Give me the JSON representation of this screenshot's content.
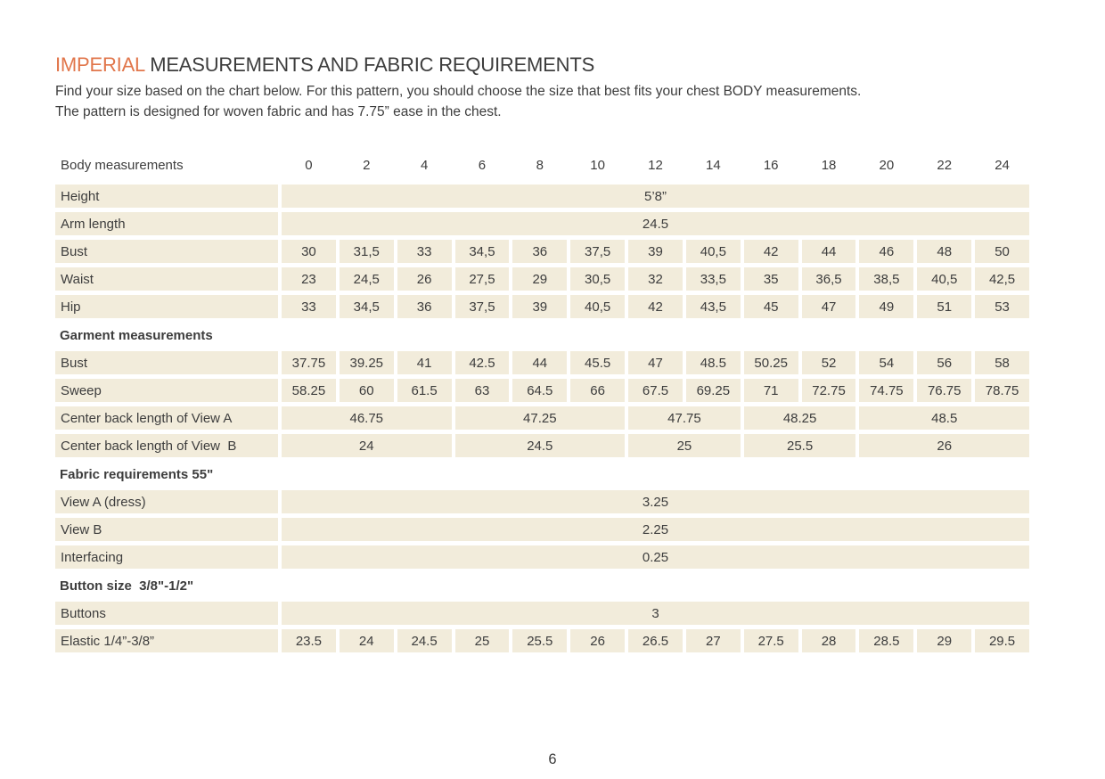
{
  "page": {
    "title": {
      "highlight": "IMPERIAL",
      "rest": " MEASUREMENTS AND FABRIC REQUIREMENTS"
    },
    "intro_line1": "Find your size based on the chart below. For this pattern, you should choose the size that best fits your chest BODY measurements.",
    "intro_line2": "The pattern is designed for woven fabric and has 7.75” ease in the chest.",
    "page_number": "6"
  },
  "colors": {
    "accent": "#e1764b",
    "cell_background": "#f2ecdb",
    "text": "#3d3d3d"
  },
  "chart_data": {
    "type": "table",
    "title": "Imperial measurements and fabric requirements",
    "sizes": [
      "0",
      "2",
      "4",
      "6",
      "8",
      "10",
      "12",
      "14",
      "16",
      "18",
      "20",
      "22",
      "24"
    ],
    "height": "5’8”",
    "arm_length": "24.5",
    "body_bust": [
      "30",
      "31,5",
      "33",
      "34,5",
      "36",
      "37,5",
      "39",
      "40,5",
      "42",
      "44",
      "46",
      "48",
      "50"
    ],
    "body_waist": [
      "23",
      "24,5",
      "26",
      "27,5",
      "29",
      "30,5",
      "32",
      "33,5",
      "35",
      "36,5",
      "38,5",
      "40,5",
      "42,5"
    ],
    "body_hip": [
      "33",
      "34,5",
      "36",
      "37,5",
      "39",
      "40,5",
      "42",
      "43,5",
      "45",
      "47",
      "49",
      "51",
      "53"
    ],
    "garment_bust": [
      "37.75",
      "39.25",
      "41",
      "42.5",
      "44",
      "45.5",
      "47",
      "48.5",
      "50.25",
      "52",
      "54",
      "56",
      "58"
    ],
    "garment_sweep": [
      "58.25",
      "60",
      "61.5",
      "63",
      "64.5",
      "66",
      "67.5",
      "69.25",
      "71",
      "72.75",
      "74.75",
      "76.75",
      "78.75"
    ],
    "center_back_length_view_a": [
      "46.75",
      "47.25",
      "47.75",
      "48.25",
      "48.5"
    ],
    "center_back_length_view_b": [
      "24",
      "24.5",
      "25",
      "25.5",
      "26"
    ],
    "fabric_view_a_dress": "3.25",
    "fabric_view_b": "2.25",
    "fabric_interfacing": "0.25",
    "buttons": "3",
    "elastic": [
      "23.5",
      "24",
      "24.5",
      "25",
      "25.5",
      "26",
      "26.5",
      "27",
      "27.5",
      "28",
      "28.5",
      "29",
      "29.5"
    ]
  },
  "table": {
    "header": {
      "label": "Body measurements",
      "sizes": [
        "0",
        "2",
        "4",
        "6",
        "8",
        "10",
        "12",
        "14",
        "16",
        "18",
        "20",
        "22",
        "24"
      ]
    },
    "rows": [
      {
        "type": "merged",
        "label": "Height",
        "value": "5’8”"
      },
      {
        "type": "merged",
        "label": "Arm length",
        "value": "24.5"
      },
      {
        "type": "cells",
        "label": "Bust",
        "values": [
          "30",
          "31,5",
          "33",
          "34,5",
          "36",
          "37,5",
          "39",
          "40,5",
          "42",
          "44",
          "46",
          "48",
          "50"
        ]
      },
      {
        "type": "cells",
        "label": "Waist",
        "values": [
          "23",
          "24,5",
          "26",
          "27,5",
          "29",
          "30,5",
          "32",
          "33,5",
          "35",
          "36,5",
          "38,5",
          "40,5",
          "42,5"
        ]
      },
      {
        "type": "cells",
        "label": "Hip",
        "values": [
          "33",
          "34,5",
          "36",
          "37,5",
          "39",
          "40,5",
          "42",
          "43,5",
          "45",
          "47",
          "49",
          "51",
          "53"
        ]
      },
      {
        "type": "section",
        "label": "Garment measurements"
      },
      {
        "type": "cells",
        "label": "Bust",
        "values": [
          "37.75",
          "39.25",
          "41",
          "42.5",
          "44",
          "45.5",
          "47",
          "48.5",
          "50.25",
          "52",
          "54",
          "56",
          "58"
        ]
      },
      {
        "type": "cells",
        "label": "Sweep",
        "values": [
          "58.25",
          "60",
          "61.5",
          "63",
          "64.5",
          "66",
          "67.5",
          "69.25",
          "71",
          "72.75",
          "74.75",
          "76.75",
          "78.75"
        ]
      },
      {
        "type": "groups",
        "label": "Center back length of View A",
        "groups": [
          {
            "span": 3,
            "value": "46.75"
          },
          {
            "span": 3,
            "value": "47.25"
          },
          {
            "span": 2,
            "value": "47.75"
          },
          {
            "span": 2,
            "value": "48.25"
          },
          {
            "span": 3,
            "value": "48.5"
          }
        ]
      },
      {
        "type": "groups",
        "label": "Center back length of View  B",
        "groups": [
          {
            "span": 3,
            "value": "24"
          },
          {
            "span": 3,
            "value": "24.5"
          },
          {
            "span": 2,
            "value": "25"
          },
          {
            "span": 2,
            "value": "25.5"
          },
          {
            "span": 3,
            "value": "26"
          }
        ]
      },
      {
        "type": "section",
        "label": "Fabric requirements 55\""
      },
      {
        "type": "merged",
        "label": "View A (dress)",
        "value": "3.25"
      },
      {
        "type": "merged",
        "label": "View B",
        "value": "2.25"
      },
      {
        "type": "merged",
        "label": "Interfacing",
        "value": "0.25"
      },
      {
        "type": "section",
        "label": "Button size  3/8\"-1/2\""
      },
      {
        "type": "merged",
        "label": "Buttons",
        "value": "3"
      },
      {
        "type": "cells",
        "label": "Elastic 1/4”-3/8”",
        "values": [
          "23.5",
          "24",
          "24.5",
          "25",
          "25.5",
          "26",
          "26.5",
          "27",
          "27.5",
          "28",
          "28.5",
          "29",
          "29.5"
        ]
      }
    ]
  }
}
